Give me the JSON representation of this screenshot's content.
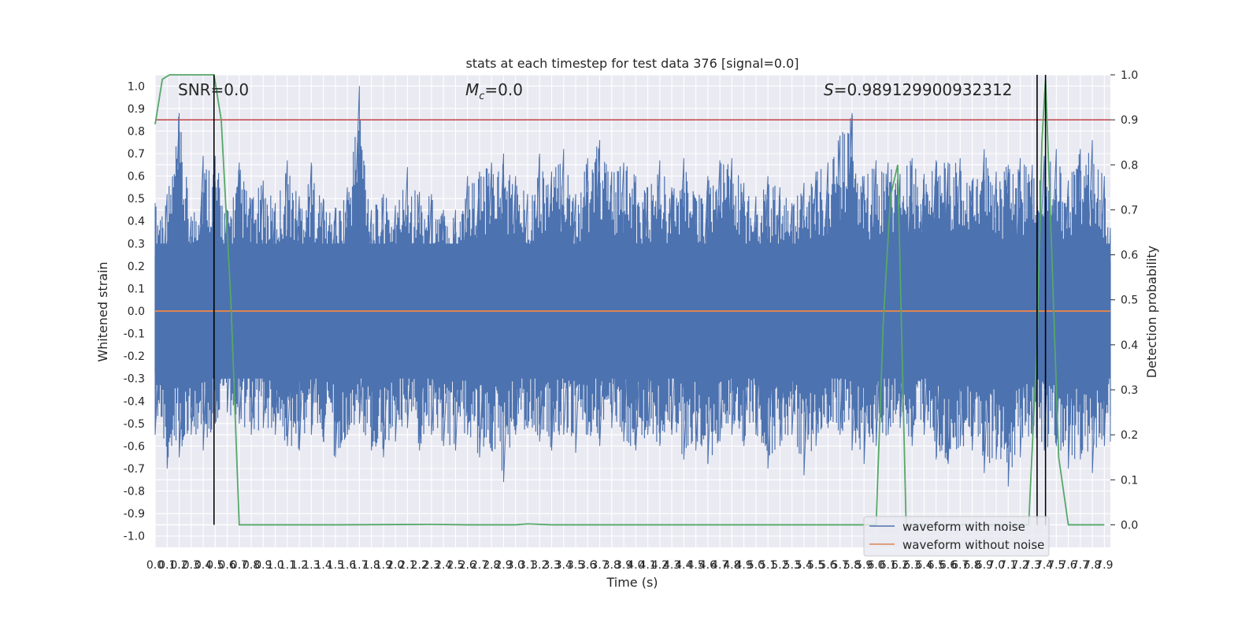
{
  "chart_data": {
    "type": "line",
    "title": "stats at each timestep for test data 376 [signal=0.0]",
    "xlabel": "Time (s)",
    "ylabel_left": "Whitened strain",
    "ylabel_right": "Detection probability",
    "xlim": [
      0.0,
      7.95
    ],
    "ylim_left": [
      -1.05,
      1.05
    ],
    "ylim_right": [
      -0.05,
      1.0
    ],
    "x_ticks": [
      "0.0",
      "0.1",
      "0.2",
      "0.3",
      "0.4",
      "0.5",
      "0.6",
      "0.7",
      "0.8",
      "0.9",
      "1.0",
      "1.1",
      "1.2",
      "1.3",
      "1.4",
      "1.5",
      "1.6",
      "1.7",
      "1.8",
      "1.9",
      "2.0",
      "2.1",
      "2.2",
      "2.3",
      "2.4",
      "2.5",
      "2.6",
      "2.7",
      "2.8",
      "2.9",
      "3.0",
      "3.1",
      "3.2",
      "3.3",
      "3.4",
      "3.5",
      "3.6",
      "3.7",
      "3.8",
      "3.9",
      "4.0",
      "4.1",
      "4.2",
      "4.3",
      "4.4",
      "4.5",
      "4.6",
      "4.7",
      "4.8",
      "4.9",
      "5.0",
      "5.1",
      "5.2",
      "5.3",
      "5.4",
      "5.5",
      "5.6",
      "5.7",
      "5.8",
      "5.9",
      "6.0",
      "6.1",
      "6.2",
      "6.3",
      "6.4",
      "6.5",
      "6.6",
      "6.7",
      "6.8",
      "6.9",
      "7.0",
      "7.1",
      "7.2",
      "7.3",
      "7.4",
      "7.5",
      "7.6",
      "7.7",
      "7.8",
      "7.9"
    ],
    "y_ticks_left": [
      "-1.0",
      "-0.9",
      "-0.8",
      "-0.7",
      "-0.6",
      "-0.5",
      "-0.4",
      "-0.3",
      "-0.2",
      "-0.1",
      "0.0",
      "0.1",
      "0.2",
      "0.3",
      "0.4",
      "0.5",
      "0.6",
      "0.7",
      "0.8",
      "0.9",
      "1.0"
    ],
    "y_ticks_right": [
      "0.0",
      "0.1",
      "0.2",
      "0.3",
      "0.4",
      "0.5",
      "0.6",
      "0.7",
      "0.8",
      "0.9",
      "1.0"
    ],
    "annotations": {
      "snr": "SNR=0.0",
      "mc_symbol": "M",
      "mc_sub": "c",
      "mc_value": "=0.0",
      "s_symbol": "S",
      "s_value": "=0.989129900932312"
    },
    "legend": {
      "placement": "lower-right",
      "entries": [
        "waveform with noise",
        "waveform without noise"
      ]
    },
    "threshold_line": {
      "axis": "right",
      "y": 0.9,
      "color": "#c44e52"
    },
    "vertical_markers_x": [
      0.49,
      7.34,
      7.41
    ],
    "noise_envelope": {
      "name": "waveform with noise",
      "color": "#4c72b0",
      "x": [
        0.0,
        0.1,
        0.2,
        0.3,
        0.4,
        0.5,
        0.6,
        0.7,
        0.8,
        0.9,
        1.0,
        1.1,
        1.2,
        1.3,
        1.4,
        1.5,
        1.6,
        1.7,
        1.8,
        1.9,
        2.0,
        2.1,
        2.2,
        2.3,
        2.4,
        2.5,
        2.6,
        2.7,
        2.8,
        2.9,
        3.0,
        3.1,
        3.2,
        3.3,
        3.4,
        3.5,
        3.6,
        3.7,
        3.8,
        3.9,
        4.0,
        4.1,
        4.2,
        4.3,
        4.4,
        4.5,
        4.6,
        4.7,
        4.8,
        4.9,
        5.0,
        5.1,
        5.2,
        5.3,
        5.4,
        5.5,
        5.6,
        5.7,
        5.8,
        5.9,
        6.0,
        6.1,
        6.2,
        6.3,
        6.4,
        6.5,
        6.6,
        6.7,
        6.8,
        6.9,
        7.0,
        7.1,
        7.2,
        7.3,
        7.4,
        7.5,
        7.6,
        7.7,
        7.8,
        7.9,
        7.95
      ],
      "upper": [
        0.48,
        0.52,
        0.88,
        0.42,
        0.69,
        0.69,
        0.45,
        0.66,
        0.5,
        0.58,
        0.48,
        0.67,
        0.51,
        0.66,
        0.5,
        0.46,
        0.55,
        1.0,
        0.45,
        0.52,
        0.47,
        0.64,
        0.53,
        0.52,
        0.45,
        0.45,
        0.6,
        0.62,
        0.66,
        0.7,
        0.6,
        0.52,
        0.7,
        0.62,
        0.72,
        0.52,
        0.68,
        0.76,
        0.62,
        0.66,
        0.6,
        0.55,
        0.67,
        0.55,
        0.68,
        0.5,
        0.6,
        0.67,
        0.68,
        0.57,
        0.51,
        0.6,
        0.55,
        0.48,
        0.57,
        0.62,
        0.66,
        0.78,
        0.88,
        0.6,
        0.67,
        0.66,
        0.61,
        0.68,
        0.61,
        0.67,
        0.66,
        0.68,
        0.58,
        0.72,
        0.62,
        0.65,
        0.68,
        0.65,
        0.69,
        0.72,
        0.58,
        0.72,
        0.76,
        0.6,
        0.37
      ],
      "lower": [
        -0.55,
        -0.7,
        -0.65,
        -0.55,
        -0.62,
        -0.5,
        -0.45,
        -0.5,
        -0.55,
        -0.52,
        -0.55,
        -0.6,
        -0.62,
        -0.55,
        -0.58,
        -0.65,
        -0.55,
        -0.5,
        -0.62,
        -0.65,
        -0.58,
        -0.52,
        -0.62,
        -0.55,
        -0.6,
        -0.62,
        -0.55,
        -0.65,
        -0.62,
        -0.76,
        -0.55,
        -0.52,
        -0.58,
        -0.62,
        -0.55,
        -0.63,
        -0.55,
        -0.6,
        -0.52,
        -0.58,
        -0.62,
        -0.55,
        -0.6,
        -0.55,
        -0.66,
        -0.62,
        -0.68,
        -0.58,
        -0.55,
        -0.6,
        -0.55,
        -0.7,
        -0.6,
        -0.55,
        -0.73,
        -0.6,
        -0.52,
        -0.55,
        -0.62,
        -0.68,
        -0.6,
        -0.55,
        -0.52,
        -0.6,
        -0.55,
        -0.66,
        -0.68,
        -0.6,
        -0.62,
        -0.72,
        -0.66,
        -0.78,
        -0.65,
        -0.55,
        -0.62,
        -0.6,
        -0.7,
        -0.66,
        -0.72,
        -0.6,
        -0.58
      ]
    },
    "clean_waveform": {
      "name": "waveform without noise",
      "color": "#dd8452",
      "x": [
        0.0,
        7.95
      ],
      "y": [
        0.0,
        0.0
      ]
    },
    "detection_probability": {
      "color": "#55a868",
      "axis": "right",
      "x": [
        0.0,
        0.06,
        0.12,
        0.2,
        0.3,
        0.4,
        0.49,
        0.55,
        0.63,
        0.7,
        0.9,
        1.5,
        2.3,
        2.6,
        3.0,
        3.1,
        3.3,
        4.0,
        5.0,
        5.9,
        6.0,
        6.06,
        6.12,
        6.18,
        6.25,
        6.4,
        7.0,
        7.27,
        7.34,
        7.38,
        7.41,
        7.45,
        7.52,
        7.6,
        7.8,
        7.9
      ],
      "y": [
        0.89,
        0.99,
        1.0,
        1.0,
        1.0,
        1.0,
        1.0,
        0.9,
        0.5,
        0.0,
        0.0,
        0.0,
        0.001,
        0.0,
        0.0,
        0.002,
        0.0,
        0.0,
        0.0,
        0.0,
        0.0,
        0.45,
        0.73,
        0.8,
        0.0,
        0.0,
        0.0,
        0.0,
        0.4,
        0.85,
        0.99,
        0.7,
        0.15,
        0.0,
        0.0,
        0.0
      ]
    }
  }
}
